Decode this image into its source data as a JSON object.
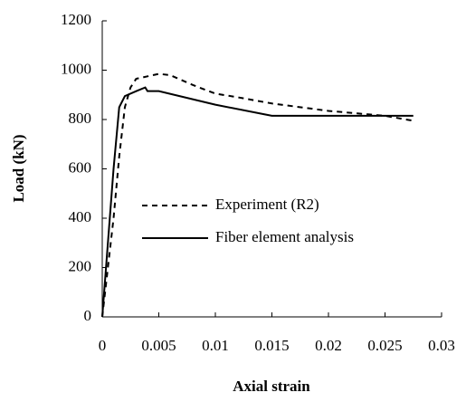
{
  "chart_data": {
    "type": "line",
    "x_label": "Axial strain",
    "y_label": "Load (kN)",
    "xlim": [
      0,
      0.03
    ],
    "xticks": [
      0,
      0.005,
      0.01,
      0.015,
      0.02,
      0.025,
      0.03
    ],
    "ylim": [
      0,
      1200
    ],
    "yticks": [
      0,
      200,
      400,
      600,
      800,
      1000,
      1200
    ],
    "grid": false,
    "legend": "center",
    "series": [
      {
        "name": "Experiment (R2)",
        "color": "#000000",
        "dashed": true,
        "x": [
          0,
          0.001,
          0.0015,
          0.002,
          0.0025,
          0.003,
          0.004,
          0.005,
          0.006,
          0.008,
          0.01,
          0.012,
          0.015,
          0.02,
          0.025,
          0.0275
        ],
        "values": [
          0,
          400,
          650,
          850,
          930,
          965,
          975,
          985,
          980,
          940,
          905,
          890,
          865,
          835,
          815,
          795
        ]
      },
      {
        "name": "Fiber element analysis",
        "color": "#000000",
        "dashed": false,
        "x": [
          0,
          0.0005,
          0.001,
          0.0015,
          0.002,
          0.003,
          0.0038,
          0.004,
          0.005,
          0.01,
          0.015,
          0.02,
          0.0275
        ],
        "values": [
          0,
          300,
          600,
          850,
          895,
          915,
          930,
          915,
          915,
          860,
          815,
          815,
          815
        ]
      }
    ]
  }
}
